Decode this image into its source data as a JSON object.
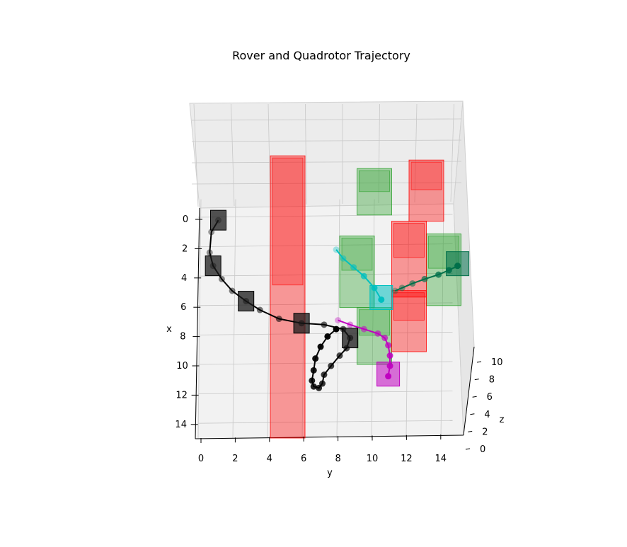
{
  "chart_data": {
    "type": "3d-scatter-line",
    "title": "Rover and Quadrotor Trajectory",
    "axes": {
      "x": {
        "label": "x",
        "ticks": [
          "0",
          "2",
          "4",
          "6",
          "8",
          "10",
          "12",
          "14"
        ],
        "range": [
          0,
          15
        ]
      },
      "y": {
        "label": "y",
        "ticks": [
          "0",
          "2",
          "4",
          "6",
          "8",
          "10",
          "12",
          "14"
        ],
        "range": [
          0,
          15
        ]
      },
      "z": {
        "label": "z",
        "ticks": [
          "0",
          "2",
          "4",
          "6",
          "8",
          "10"
        ],
        "range": [
          0,
          11
        ]
      }
    },
    "grid": true,
    "colors": {
      "rover": "#000000",
      "quad_magenta": "#c000c0",
      "quad_cyan": "#00c0c0",
      "quad_green": "#00704a",
      "obstacle": "#ff0000",
      "goal_region": "#2ca02c"
    },
    "series": [
      {
        "key": "rover",
        "points": [
          [
            0.2,
            1.0
          ],
          [
            1.0,
            0.6
          ],
          [
            2.4,
            0.5
          ],
          [
            3.3,
            0.7
          ],
          [
            4.2,
            1.2
          ],
          [
            5.0,
            1.8
          ],
          [
            5.7,
            2.6
          ],
          [
            6.3,
            3.4
          ],
          [
            6.9,
            4.5
          ],
          [
            7.2,
            5.8
          ],
          [
            7.3,
            7.1
          ],
          [
            7.6,
            8.2
          ],
          [
            8.2,
            8.6
          ],
          [
            8.9,
            8.4
          ],
          [
            9.4,
            8.0
          ],
          [
            10.1,
            7.5
          ],
          [
            10.7,
            7.1
          ],
          [
            11.3,
            7.0
          ],
          [
            11.6,
            6.8
          ],
          [
            11.5,
            6.5
          ],
          [
            11.1,
            6.4
          ],
          [
            10.4,
            6.5
          ],
          [
            9.6,
            6.6
          ],
          [
            8.8,
            6.9
          ],
          [
            8.1,
            7.3
          ],
          [
            7.6,
            7.8
          ]
        ]
      },
      {
        "key": "quad_magenta",
        "points": [
          [
            7.0,
            7.9
          ],
          [
            7.3,
            8.6
          ],
          [
            7.6,
            9.4
          ],
          [
            7.9,
            10.2
          ],
          [
            8.2,
            10.6
          ],
          [
            8.7,
            10.8
          ],
          [
            9.4,
            10.9
          ],
          [
            10.1,
            10.9
          ],
          [
            10.8,
            10.8
          ]
        ]
      },
      {
        "key": "quad_cyan",
        "points": [
          [
            2.2,
            7.8
          ],
          [
            2.8,
            8.2
          ],
          [
            3.4,
            8.8
          ],
          [
            4.0,
            9.4
          ],
          [
            4.8,
            10.0
          ],
          [
            5.6,
            10.4
          ]
        ]
      },
      {
        "key": "quad_green",
        "points": [
          [
            5.0,
            11.2
          ],
          [
            4.8,
            11.6
          ],
          [
            4.5,
            12.2
          ],
          [
            4.2,
            12.9
          ],
          [
            3.9,
            13.7
          ],
          [
            3.6,
            14.3
          ],
          [
            3.3,
            14.8
          ]
        ]
      }
    ],
    "obstacles": [
      {
        "x": [
          -1,
          15
        ],
        "y": [
          4,
          6
        ],
        "z": [
          0,
          11
        ]
      },
      {
        "x": [
          2,
          6
        ],
        "y": [
          11,
          13
        ],
        "z": [
          2,
          6
        ]
      },
      {
        "x": [
          7,
          10
        ],
        "y": [
          11,
          13
        ],
        "z": [
          3,
          7
        ]
      },
      {
        "x": [
          -1,
          2
        ],
        "y": [
          12,
          14
        ],
        "z": [
          6,
          10
        ]
      }
    ],
    "goal_regions": [
      {
        "x": [
          -1,
          1
        ],
        "y": [
          9,
          11
        ],
        "z": [
          4,
          8
        ]
      },
      {
        "x": [
          2,
          6
        ],
        "y": [
          13,
          15
        ],
        "z": [
          0,
          3
        ]
      },
      {
        "x": [
          7,
          10
        ],
        "y": [
          9,
          11
        ],
        "z": [
          0,
          3
        ]
      },
      {
        "x": [
          3,
          7
        ],
        "y": [
          8,
          10
        ],
        "z": [
          3,
          6
        ]
      }
    ]
  }
}
